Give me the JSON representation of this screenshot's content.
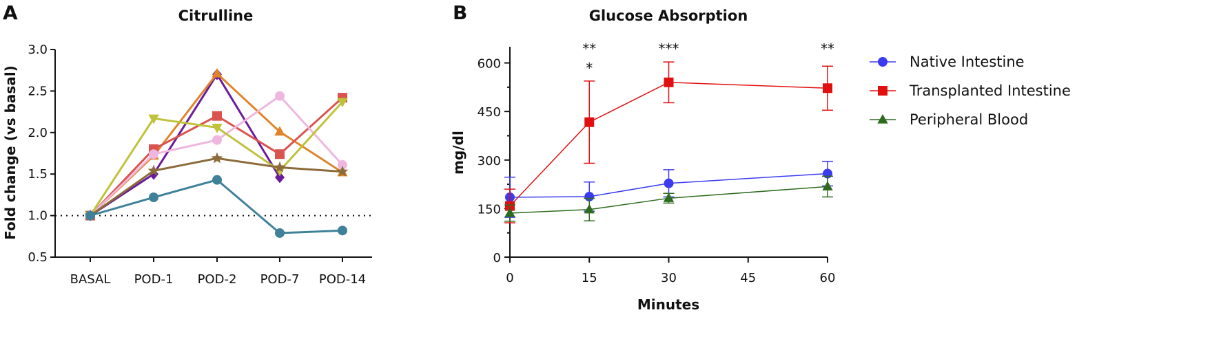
{
  "chart_data": [
    {
      "panel": "A",
      "type": "line",
      "title": "Citrulline",
      "xlabel": "",
      "ylabel": "Fold change (vs basal)",
      "categories": [
        "BASAL",
        "POD-1",
        "POD-2",
        "POD-7",
        "POD-14"
      ],
      "ylim": [
        0.5,
        3.0
      ],
      "yticks": [
        "0.5",
        "1.0",
        "1.5",
        "2.0",
        "2.5",
        "3.0"
      ],
      "reference_line": {
        "y": 1.0,
        "style": "dotted"
      },
      "grid": false,
      "series": [
        {
          "color": "#6a1b9a",
          "marker": "diamond",
          "values": [
            1.0,
            1.5,
            2.7,
            1.46,
            null
          ]
        },
        {
          "color": "#e0842a",
          "marker": "triangle-up",
          "values": [
            1.0,
            1.72,
            2.71,
            2.01,
            1.52
          ]
        },
        {
          "color": "#d9534f",
          "marker": "square",
          "values": [
            1.0,
            1.8,
            2.2,
            1.74,
            2.42
          ]
        },
        {
          "color": "#efb7df",
          "marker": "circle",
          "values": [
            1.0,
            1.74,
            1.91,
            2.44,
            1.61
          ]
        },
        {
          "color": "#bfc23a",
          "marker": "triangle-down",
          "values": [
            1.0,
            2.17,
            2.06,
            1.54,
            2.37
          ]
        },
        {
          "color": "#8b6b3a",
          "marker": "star",
          "values": [
            1.0,
            1.54,
            1.69,
            1.58,
            1.53
          ]
        },
        {
          "color": "#3e8198",
          "marker": "circle",
          "values": [
            1.0,
            1.22,
            1.43,
            0.79,
            0.82
          ]
        }
      ]
    },
    {
      "panel": "B",
      "type": "line",
      "title": "Glucose  Absorption",
      "xlabel": "Minutes",
      "ylabel": "mg/dl",
      "xlim": [
        0,
        60
      ],
      "ylim": [
        0,
        650
      ],
      "xticks": [
        "0",
        "15",
        "30",
        "45",
        "60"
      ],
      "yticks": [
        "0",
        "150",
        "300",
        "450",
        "600"
      ],
      "grid": false,
      "legend_position": "right",
      "series": [
        {
          "name": "Native Intestine",
          "color": "#3b3bf0",
          "marker": "circle",
          "x": [
            0,
            15,
            30,
            60
          ],
          "y": [
            185,
            187,
            228,
            258
          ],
          "err": [
            62,
            45,
            42,
            38
          ]
        },
        {
          "name": "Transplanted Intestine",
          "color": "#e01010",
          "marker": "square",
          "x": [
            0,
            15,
            30,
            60
          ],
          "y": [
            158,
            417,
            540,
            522
          ],
          "err": [
            52,
            127,
            63,
            68
          ]
        },
        {
          "name": "Peripheral Blood",
          "color": "#2e6b1e",
          "marker": "triangle-up",
          "x": [
            0,
            15,
            30,
            60
          ],
          "y": [
            136,
            147,
            182,
            218
          ],
          "err": [
            25,
            35,
            15,
            32
          ]
        }
      ],
      "annotations": [
        {
          "x": 15,
          "text": "**",
          "row": 1
        },
        {
          "x": 15,
          "text": "*",
          "row": 2
        },
        {
          "x": 30,
          "text": "***",
          "row": 1
        },
        {
          "x": 60,
          "text": "**",
          "row": 1
        }
      ]
    }
  ]
}
